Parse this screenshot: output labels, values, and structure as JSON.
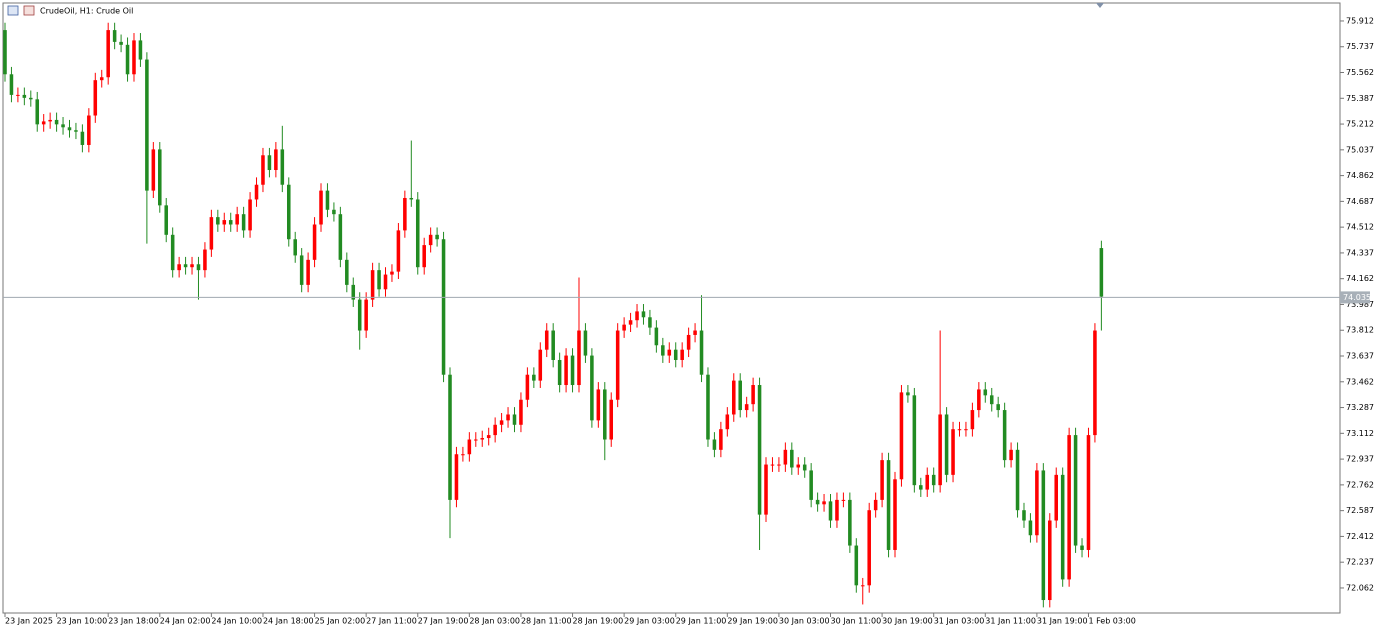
{
  "chart_data": {
    "type": "candlestick",
    "title": "CrudeOil, H1: Crude Oil",
    "up_color": "#ff0000",
    "down_color": "#228b22",
    "open": [
      75.85,
      75.55,
      75.41,
      75.41,
      75.39,
      75.38,
      75.21,
      75.23,
      75.24,
      75.21,
      75.19,
      75.17,
      75.16,
      75.07,
      75.27,
      75.51,
      75.53,
      75.85,
      75.77,
      75.75,
      75.55,
      75.78,
      75.65,
      74.76,
      75.04,
      74.66,
      74.46,
      74.22,
      74.26,
      74.24,
      74.26,
      74.22,
      74.36,
      74.58,
      74.53,
      74.56,
      74.53,
      74.6,
      74.49,
      74.7,
      74.8,
      75.0,
      74.9,
      75.04,
      74.8,
      74.43,
      74.32,
      74.12,
      74.29,
      74.53,
      74.76,
      74.63,
      74.6,
      74.29,
      74.12,
      74.02,
      73.81,
      74.02,
      74.22,
      74.09,
      74.19,
      74.21,
      74.49,
      74.71,
      74.7,
      74.24,
      74.39,
      74.46,
      74.43,
      73.51,
      72.66,
      72.97,
      72.97,
      73.07,
      73.07,
      73.08,
      73.1,
      73.17,
      73.2,
      73.24,
      73.17,
      73.34,
      73.51,
      73.47,
      73.68,
      73.81,
      73.61,
      73.44,
      73.64,
      73.44,
      73.81,
      73.64,
      73.2,
      73.41,
      73.07,
      73.34,
      73.81,
      73.85,
      73.88,
      73.94,
      73.9,
      73.83,
      73.71,
      73.64,
      73.68,
      73.61,
      73.68,
      73.78,
      73.81,
      73.51,
      73.07,
      73.0,
      73.14,
      73.24,
      73.47,
      73.27,
      73.31,
      73.44,
      72.56,
      72.9,
      72.9,
      72.9,
      73.0,
      72.88,
      72.9,
      72.86,
      72.66,
      72.63,
      72.65,
      72.52,
      72.66,
      72.66,
      72.35,
      72.08,
      72.08,
      72.59,
      72.66,
      72.93,
      72.32,
      72.8,
      73.39,
      73.37,
      72.76,
      72.73,
      72.83,
      72.76,
      73.24,
      72.83,
      73.14,
      73.14,
      73.14,
      73.27,
      73.41,
      73.37,
      73.31,
      73.27,
      72.93,
      73.0,
      72.59,
      72.52,
      72.42,
      72.86,
      71.98,
      72.52,
      72.83,
      72.12,
      73.1,
      72.35,
      72.32,
      73.1,
      74.37
    ],
    "high": [
      75.9,
      75.6,
      75.46,
      75.46,
      75.44,
      75.43,
      75.28,
      75.29,
      75.29,
      75.26,
      75.24,
      75.22,
      75.21,
      75.32,
      75.56,
      75.58,
      75.9,
      75.9,
      75.82,
      75.8,
      75.83,
      75.83,
      75.7,
      75.09,
      75.09,
      74.71,
      74.51,
      74.31,
      74.31,
      74.31,
      74.31,
      74.41,
      74.63,
      74.63,
      74.61,
      74.61,
      74.65,
      74.65,
      74.75,
      74.85,
      75.05,
      75.05,
      75.09,
      75.2,
      74.85,
      74.48,
      74.37,
      74.34,
      74.58,
      74.81,
      74.81,
      74.68,
      74.65,
      74.34,
      74.17,
      74.07,
      74.07,
      74.27,
      74.27,
      74.24,
      74.26,
      74.54,
      74.76,
      75.1,
      74.75,
      74.44,
      74.51,
      74.51,
      74.48,
      73.56,
      73.02,
      73.02,
      73.12,
      73.12,
      73.13,
      73.15,
      73.22,
      73.25,
      73.29,
      73.29,
      73.39,
      73.56,
      73.56,
      73.73,
      73.86,
      73.86,
      73.66,
      73.69,
      73.69,
      74.17,
      73.86,
      73.69,
      73.46,
      73.46,
      73.39,
      73.86,
      73.9,
      73.93,
      73.99,
      73.99,
      73.95,
      73.88,
      73.76,
      73.73,
      73.73,
      73.73,
      73.83,
      73.86,
      74.05,
      73.56,
      73.12,
      73.19,
      73.29,
      73.52,
      73.52,
      73.36,
      73.49,
      73.49,
      72.95,
      72.95,
      72.95,
      73.05,
      73.05,
      72.95,
      72.95,
      72.91,
      72.71,
      72.7,
      72.7,
      72.71,
      72.71,
      72.71,
      72.4,
      72.13,
      72.64,
      72.71,
      72.98,
      72.98,
      72.85,
      73.44,
      73.44,
      73.42,
      72.81,
      72.88,
      72.88,
      73.81,
      73.29,
      73.19,
      73.19,
      73.19,
      73.32,
      73.46,
      73.46,
      73.42,
      73.36,
      73.32,
      73.05,
      73.05,
      72.64,
      72.57,
      72.91,
      72.91,
      72.57,
      72.88,
      72.88,
      73.15,
      73.15,
      72.4,
      73.15,
      73.86,
      74.42
    ],
    "low": [
      75.5,
      75.36,
      75.36,
      75.34,
      75.33,
      75.16,
      75.16,
      75.18,
      75.16,
      75.14,
      75.12,
      75.11,
      75.02,
      75.02,
      75.22,
      75.46,
      75.48,
      75.72,
      75.7,
      75.5,
      75.5,
      75.6,
      74.4,
      74.71,
      74.61,
      74.41,
      74.17,
      74.17,
      74.19,
      74.19,
      74.02,
      74.17,
      74.31,
      74.48,
      74.48,
      74.48,
      74.48,
      74.44,
      74.44,
      74.65,
      74.75,
      74.85,
      74.85,
      74.75,
      74.38,
      74.27,
      74.07,
      74.07,
      74.24,
      74.48,
      74.58,
      74.55,
      74.24,
      74.07,
      73.97,
      73.68,
      73.76,
      73.97,
      74.04,
      74.04,
      74.14,
      74.16,
      74.44,
      74.65,
      74.19,
      74.19,
      74.34,
      74.38,
      73.46,
      72.4,
      72.61,
      72.92,
      72.92,
      73.02,
      73.02,
      73.03,
      73.05,
      73.12,
      73.15,
      73.12,
      73.12,
      73.29,
      73.42,
      73.42,
      73.63,
      73.56,
      73.39,
      73.39,
      73.39,
      73.39,
      73.59,
      73.15,
      73.15,
      72.93,
      73.02,
      73.29,
      73.76,
      73.8,
      73.83,
      73.85,
      73.78,
      73.66,
      73.59,
      73.59,
      73.56,
      73.56,
      73.63,
      73.73,
      73.46,
      73.02,
      72.95,
      72.95,
      73.09,
      73.19,
      73.22,
      73.22,
      73.26,
      72.32,
      72.51,
      72.85,
      72.85,
      72.85,
      72.83,
      72.83,
      72.81,
      72.61,
      72.58,
      72.58,
      72.47,
      72.47,
      72.61,
      72.3,
      72.03,
      71.95,
      72.03,
      72.54,
      72.61,
      72.27,
      72.27,
      72.75,
      73.32,
      72.71,
      72.68,
      72.68,
      72.71,
      72.71,
      72.78,
      72.78,
      73.09,
      73.09,
      73.09,
      73.22,
      73.32,
      73.26,
      73.22,
      72.88,
      72.88,
      72.54,
      72.47,
      72.37,
      72.37,
      71.93,
      71.93,
      72.47,
      72.07,
      72.07,
      72.3,
      72.27,
      72.27,
      73.05,
      73.81
    ],
    "close": [
      75.55,
      75.41,
      75.41,
      75.39,
      75.38,
      75.21,
      75.23,
      75.24,
      75.21,
      75.19,
      75.17,
      75.16,
      75.07,
      75.27,
      75.51,
      75.53,
      75.85,
      75.77,
      75.75,
      75.55,
      75.78,
      75.65,
      74.76,
      75.04,
      74.66,
      74.46,
      74.22,
      74.26,
      74.24,
      74.26,
      74.22,
      74.36,
      74.58,
      74.53,
      74.56,
      74.53,
      74.6,
      74.49,
      74.7,
      74.8,
      75.0,
      74.9,
      75.04,
      74.8,
      74.43,
      74.32,
      74.12,
      74.29,
      74.53,
      74.76,
      74.63,
      74.6,
      74.29,
      74.12,
      74.02,
      73.81,
      74.02,
      74.22,
      74.09,
      74.19,
      74.21,
      74.49,
      74.71,
      74.7,
      74.24,
      74.39,
      74.46,
      74.43,
      73.51,
      72.66,
      72.97,
      72.97,
      73.07,
      73.07,
      73.08,
      73.1,
      73.17,
      73.2,
      73.24,
      73.17,
      73.34,
      73.51,
      73.47,
      73.68,
      73.81,
      73.61,
      73.44,
      73.64,
      73.44,
      73.81,
      73.64,
      73.2,
      73.41,
      73.07,
      73.34,
      73.81,
      73.85,
      73.88,
      73.94,
      73.9,
      73.83,
      73.71,
      73.64,
      73.68,
      73.61,
      73.68,
      73.78,
      73.81,
      73.51,
      73.07,
      73.0,
      73.14,
      73.24,
      73.47,
      73.27,
      73.31,
      73.44,
      72.56,
      72.9,
      72.9,
      72.9,
      73.0,
      72.88,
      72.9,
      72.86,
      72.66,
      72.63,
      72.65,
      72.52,
      72.66,
      72.66,
      72.35,
      72.08,
      72.08,
      72.59,
      72.66,
      72.93,
      72.32,
      72.8,
      73.39,
      73.37,
      72.76,
      72.73,
      72.83,
      72.76,
      73.24,
      72.83,
      73.14,
      73.14,
      73.14,
      73.27,
      73.41,
      73.37,
      73.31,
      73.27,
      72.93,
      73.0,
      72.59,
      72.52,
      72.42,
      72.86,
      71.98,
      72.52,
      72.83,
      72.12,
      73.1,
      72.35,
      72.32,
      73.1,
      73.81,
      74.04
    ],
    "xlim": [
      -0.31,
      207
    ],
    "xticks": [
      {
        "value": 0,
        "label": "23 Jan 2025"
      },
      {
        "value": 8,
        "label": "23 Jan 10:00"
      },
      {
        "value": 16,
        "label": "23 Jan 18:00"
      },
      {
        "value": 24,
        "label": "24 Jan 02:00"
      },
      {
        "value": 32,
        "label": "24 Jan 10:00"
      },
      {
        "value": 40,
        "label": "24 Jan 18:00"
      },
      {
        "value": 48,
        "label": "25 Jan 02:00"
      },
      {
        "value": 56,
        "label": "27 Jan 11:00"
      },
      {
        "value": 64,
        "label": "27 Jan 19:00"
      },
      {
        "value": 72,
        "label": "28 Jan 03:00"
      },
      {
        "value": 80,
        "label": "28 Jan 11:00"
      },
      {
        "value": 88,
        "label": "28 Jan 19:00"
      },
      {
        "value": 96,
        "label": "29 Jan 03:00"
      },
      {
        "value": 104,
        "label": "29 Jan 11:00"
      },
      {
        "value": 112,
        "label": "29 Jan 19:00"
      },
      {
        "value": 120,
        "label": "30 Jan 03:00"
      },
      {
        "value": 128,
        "label": "30 Jan 11:00"
      },
      {
        "value": 136,
        "label": "30 Jan 19:00"
      },
      {
        "value": 144,
        "label": "31 Jan 03:00"
      },
      {
        "value": 152,
        "label": "31 Jan 11:00"
      },
      {
        "value": 160,
        "label": "31 Jan 19:00"
      },
      {
        "value": 168,
        "label": "1 Feb 03:00"
      }
    ],
    "ylim": [
      71.892,
      76.034
    ],
    "yticks": [
      75.912,
      75.737,
      75.562,
      75.387,
      75.212,
      75.037,
      74.862,
      74.687,
      74.512,
      74.337,
      74.162,
      73.987,
      73.812,
      73.637,
      73.462,
      73.287,
      73.112,
      72.937,
      72.762,
      72.587,
      72.412,
      72.237,
      72.062
    ],
    "current_price": 74.035
  }
}
